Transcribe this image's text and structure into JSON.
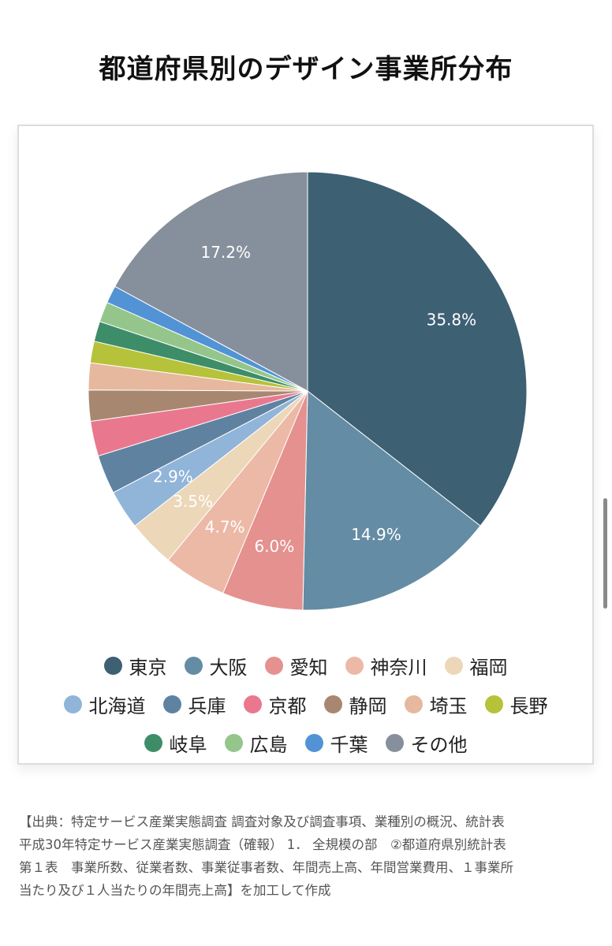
{
  "title": "都道府県別のデザイン事業所分布",
  "chart_data": {
    "type": "pie",
    "title": "都道府県別のデザイン事業所分布",
    "slices": [
      {
        "label": "東京",
        "value": 35.8,
        "color": "#3d6073",
        "data_label": "35.8%"
      },
      {
        "label": "大阪",
        "value": 14.9,
        "color": "#648ca4",
        "data_label": "14.9%"
      },
      {
        "label": "愛知",
        "value": 6.0,
        "color": "#e4918f",
        "data_label": "6.0%"
      },
      {
        "label": "神奈川",
        "value": 4.7,
        "color": "#ecb9a7",
        "data_label": "4.7%"
      },
      {
        "label": "福岡",
        "value": 3.5,
        "color": "#ecd7b9",
        "data_label": "3.5%"
      },
      {
        "label": "北海道",
        "value": 2.9,
        "color": "#91b4d9",
        "data_label": "2.9%"
      },
      {
        "label": "兵庫",
        "value": 2.9,
        "color": "#5f82a1",
        "data_label": ""
      },
      {
        "label": "京都",
        "value": 2.6,
        "color": "#e9788f",
        "data_label": ""
      },
      {
        "label": "静岡",
        "value": 2.3,
        "color": "#a88770",
        "data_label": ""
      },
      {
        "label": "埼玉",
        "value": 2.0,
        "color": "#e6b89d",
        "data_label": ""
      },
      {
        "label": "長野",
        "value": 1.6,
        "color": "#b6c23a",
        "data_label": ""
      },
      {
        "label": "岐阜",
        "value": 1.5,
        "color": "#3d8e68",
        "data_label": ""
      },
      {
        "label": "広島",
        "value": 1.5,
        "color": "#94c68c",
        "data_label": ""
      },
      {
        "label": "千葉",
        "value": 1.3,
        "color": "#5193d5",
        "data_label": ""
      },
      {
        "label": "その他",
        "value": 17.2,
        "color": "#86909c",
        "data_label": "17.2%"
      }
    ],
    "legend_position": "bottom"
  },
  "legend_rows": [
    [
      "東京",
      "大阪",
      "愛知",
      "神奈川",
      "福岡"
    ],
    [
      "北海道",
      "兵庫",
      "京都",
      "静岡",
      "埼玉",
      "長野"
    ],
    [
      "岐阜",
      "広島",
      "千葉",
      "その他"
    ]
  ],
  "source_lines": [
    "【出典：特定サービス産業実態調査 調査対象及び調査事項、業種別の概況、統計表",
    "平成30年特定サービス産業実態調査（確報） 1． 全規模の部　②都道府県別統計表",
    "第１表　事業所数、従業者数、事業従事者数、年間売上高、年間営業費用、１事業所",
    "当たり及び１人当たりの年間売上高】を加工して作成"
  ]
}
